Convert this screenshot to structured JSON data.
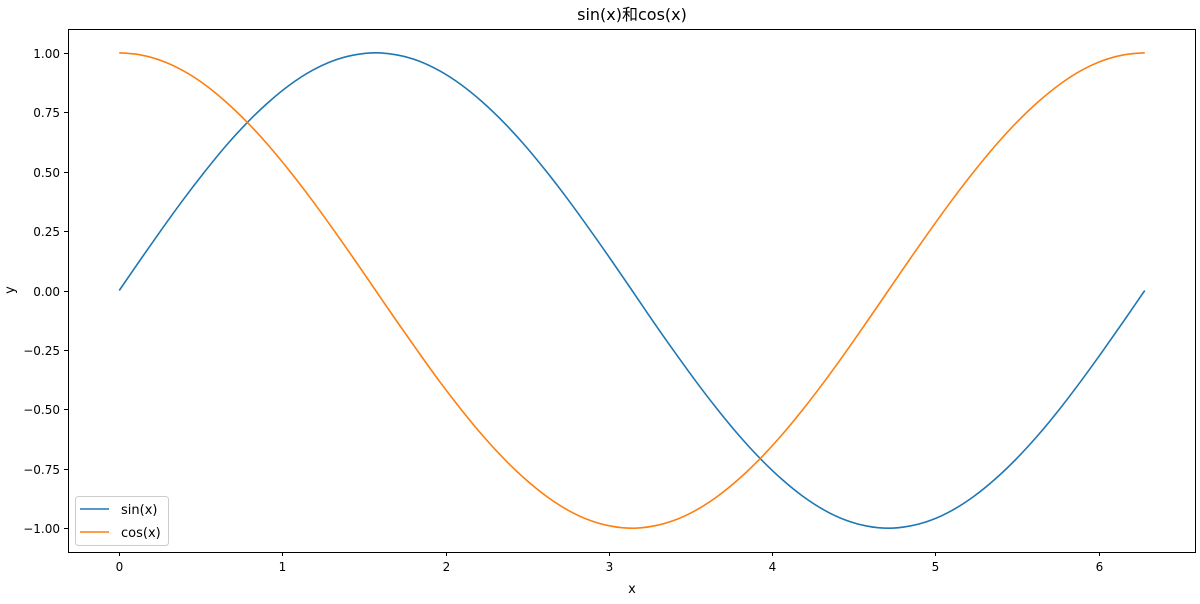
{
  "chart_data": {
    "type": "line",
    "title": "sin(x)和cos(x)",
    "xlabel": "x",
    "ylabel": "y",
    "xlim": [
      -0.314,
      6.597
    ],
    "ylim": [
      -1.1,
      1.1
    ],
    "xticks": [
      0,
      1,
      2,
      3,
      4,
      5,
      6
    ],
    "xtick_labels": [
      "0",
      "1",
      "2",
      "3",
      "4",
      "5",
      "6"
    ],
    "yticks": [
      1,
      0.75,
      0.5,
      0.25,
      0,
      -0.25,
      -0.5,
      -0.75,
      -1
    ],
    "ytick_labels": [
      "1.00",
      "0.75",
      "0.50",
      "0.25",
      "0.00",
      "−0.25",
      "−0.50",
      "−0.75",
      "−1.00"
    ],
    "grid": false,
    "legend": "lower-left",
    "x": [
      0,
      0.131,
      0.262,
      0.393,
      0.524,
      0.654,
      0.785,
      0.916,
      1.047,
      1.178,
      1.309,
      1.44,
      1.571,
      1.702,
      1.833,
      1.963,
      2.094,
      2.225,
      2.356,
      2.487,
      2.618,
      2.749,
      2.88,
      3.011,
      3.142,
      3.272,
      3.403,
      3.534,
      3.665,
      3.796,
      3.927,
      4.058,
      4.189,
      4.32,
      4.451,
      4.581,
      4.712,
      4.843,
      4.974,
      5.105,
      5.236,
      5.367,
      5.498,
      5.629,
      5.76,
      5.89,
      6.021,
      6.152,
      6.283
    ],
    "series": [
      {
        "name": "sin(x)",
        "color": "#1f77b4",
        "values": [
          0,
          0.131,
          0.259,
          0.383,
          0.5,
          0.609,
          0.707,
          0.793,
          0.866,
          0.924,
          0.966,
          0.991,
          1,
          0.991,
          0.966,
          0.924,
          0.866,
          0.793,
          0.707,
          0.609,
          0.5,
          0.383,
          0.259,
          0.131,
          0,
          -0.131,
          -0.259,
          -0.383,
          -0.5,
          -0.609,
          -0.707,
          -0.793,
          -0.866,
          -0.924,
          -0.966,
          -0.991,
          -1,
          -0.991,
          -0.966,
          -0.924,
          -0.866,
          -0.793,
          -0.707,
          -0.609,
          -0.5,
          -0.383,
          -0.259,
          -0.131,
          0
        ]
      },
      {
        "name": "cos(x)",
        "color": "#ff7f0e",
        "values": [
          1,
          0.991,
          0.966,
          0.924,
          0.866,
          0.793,
          0.707,
          0.609,
          0.5,
          0.383,
          0.259,
          0.131,
          0,
          -0.131,
          -0.259,
          -0.383,
          -0.5,
          -0.609,
          -0.707,
          -0.793,
          -0.866,
          -0.924,
          -0.966,
          -0.991,
          -1,
          -0.991,
          -0.966,
          -0.924,
          -0.866,
          -0.793,
          -0.707,
          -0.609,
          -0.5,
          -0.383,
          -0.259,
          -0.131,
          0,
          0.131,
          0.259,
          0.383,
          0.5,
          0.609,
          0.707,
          0.793,
          0.866,
          0.924,
          0.966,
          0.991,
          1
        ]
      }
    ]
  }
}
